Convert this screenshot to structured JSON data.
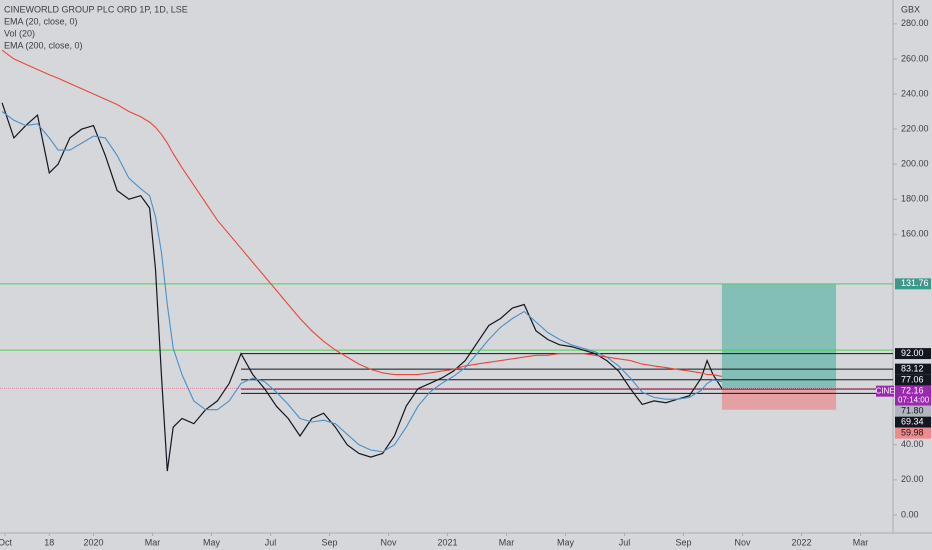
{
  "chart_data": {
    "type": "line",
    "title": "CINEWORLD GROUP PLC ORD 1P, 1D, LSE",
    "indicators": [
      "EMA (20, close, 0)",
      "Vol (20)",
      "EMA (200, close, 0)"
    ],
    "currency": "GBX",
    "x": [
      -0.1,
      0.3,
      0.7,
      1.1,
      1.5,
      1.8,
      2.2,
      2.6,
      3.0,
      3.4,
      3.8,
      4.2,
      4.6,
      4.9,
      5.1,
      5.3,
      5.5,
      5.7,
      6.0,
      6.4,
      6.8,
      7.2,
      7.6,
      8.0,
      8.4,
      8.8,
      9.2,
      9.6,
      10.0,
      10.4,
      10.8,
      11.2,
      11.6,
      12.0,
      12.4,
      12.8,
      13.2,
      13.6,
      14.0,
      14.4,
      14.8,
      15.2,
      15.6,
      16.0,
      16.4,
      16.8,
      17.2,
      17.6,
      18.0,
      18.4,
      18.8,
      19.2,
      19.6,
      20.0,
      20.4,
      20.8,
      21.2,
      21.6,
      22.0,
      22.4,
      22.8,
      23.2,
      23.6,
      23.8,
      24.0,
      24.3
    ],
    "series": [
      {
        "color": "#131722",
        "values": [
          235,
          215,
          222,
          228,
          195,
          200,
          215,
          220,
          222,
          205,
          185,
          180,
          182,
          175,
          140,
          80,
          25,
          50,
          55,
          52,
          60,
          65,
          75,
          92,
          80,
          72,
          62,
          55,
          45,
          55,
          58,
          50,
          40,
          35,
          33,
          35,
          45,
          62,
          72,
          75,
          78,
          82,
          88,
          98,
          108,
          112,
          118,
          120,
          105,
          100,
          97,
          96,
          94,
          92,
          88,
          82,
          72,
          63,
          65,
          64,
          66,
          68,
          78,
          88,
          80,
          72.16
        ]
      },
      {
        "name": "EMA (20, close, 0)",
        "color": "#4a90c8",
        "values": [
          230,
          225,
          222,
          223,
          215,
          208,
          208,
          212,
          216,
          215,
          205,
          192,
          186,
          182,
          170,
          150,
          120,
          95,
          80,
          65,
          60,
          60,
          65,
          75,
          78,
          76,
          70,
          63,
          55,
          53,
          54,
          52,
          46,
          40,
          37,
          36,
          40,
          50,
          62,
          70,
          75,
          79,
          84,
          92,
          100,
          107,
          112,
          116,
          110,
          104,
          100,
          97,
          95,
          93,
          90,
          85,
          78,
          70,
          67,
          66,
          66,
          67,
          71,
          75,
          77,
          76
        ]
      },
      {
        "name": "EMA (200, close, 0)",
        "color": "#e8483a",
        "values": [
          265,
          260,
          257,
          254,
          251,
          249,
          246,
          243,
          240,
          237,
          234,
          230,
          227,
          224,
          221,
          217,
          212,
          206,
          198,
          188,
          178,
          168,
          160,
          152,
          144,
          136,
          128,
          120,
          112,
          105,
          99,
          94,
          90,
          86,
          83,
          81,
          80,
          80,
          80,
          81,
          82,
          83,
          85,
          86,
          87,
          88,
          89,
          90,
          91,
          91,
          92,
          92,
          92,
          91,
          90,
          89,
          88,
          86,
          85,
          84,
          83,
          82,
          81,
          80,
          80,
          79
        ]
      }
    ],
    "xlim": [
      -0.17,
      30.1
    ],
    "xticks": [
      {
        "value": 0,
        "label": "Oct"
      },
      {
        "value": 1.5,
        "label": "18"
      },
      {
        "value": 3,
        "label": "2020"
      },
      {
        "value": 5,
        "label": "Mar"
      },
      {
        "value": 7,
        "label": "May"
      },
      {
        "value": 9,
        "label": "Jul"
      },
      {
        "value": 11,
        "label": "Sep"
      },
      {
        "value": 13,
        "label": "Nov"
      },
      {
        "value": 15,
        "label": "2021"
      },
      {
        "value": 17,
        "label": "Mar"
      },
      {
        "value": 19,
        "label": "May"
      },
      {
        "value": 21,
        "label": "Jul"
      },
      {
        "value": 23,
        "label": "Sep"
      },
      {
        "value": 25,
        "label": "Nov"
      },
      {
        "value": 27,
        "label": "2022"
      },
      {
        "value": 29,
        "label": "Mar"
      }
    ],
    "ylim": [
      -10.3,
      293.6
    ],
    "yticks": [
      {
        "value": 0,
        "label": "0.00"
      },
      {
        "value": 20,
        "label": "20.00"
      },
      {
        "value": 40,
        "label": "40.00"
      },
      {
        "value": 160,
        "label": "160.00"
      },
      {
        "value": 180,
        "label": "180.00"
      },
      {
        "value": 200,
        "label": "200.00"
      },
      {
        "value": 220,
        "label": "220.00"
      },
      {
        "value": 240,
        "label": "240.00"
      },
      {
        "value": 260,
        "label": "260.00"
      },
      {
        "value": 280,
        "label": "280.00"
      }
    ],
    "levels": [
      {
        "value": 131.76,
        "color": "#4cd14c"
      },
      {
        "value": 94,
        "color": "#4cd14c"
      },
      {
        "value": 92,
        "label": "92.00",
        "color": "#131722",
        "from": 8.0
      },
      {
        "value": 83.12,
        "label": "83.12",
        "color": "#131722",
        "from": 8.0
      },
      {
        "value": 77.06,
        "label": "77.06",
        "color": "#131722",
        "from": 8.0
      },
      {
        "value": 71.8,
        "label": "71.80",
        "color": "#131722",
        "from": 8.0
      },
      {
        "value": 69.34,
        "label": "69.34",
        "color": "#131722",
        "from": 8.0
      }
    ],
    "position": {
      "entry": 72.16,
      "target": 131.76,
      "target_label": "131.76",
      "stop": 59.98,
      "stop_label": "59.98",
      "from": 24.3,
      "to": 28.17
    },
    "last_price": {
      "symbol": "CINE",
      "value": 72.16,
      "label": "72.16",
      "countdown": "07:14:00"
    }
  }
}
